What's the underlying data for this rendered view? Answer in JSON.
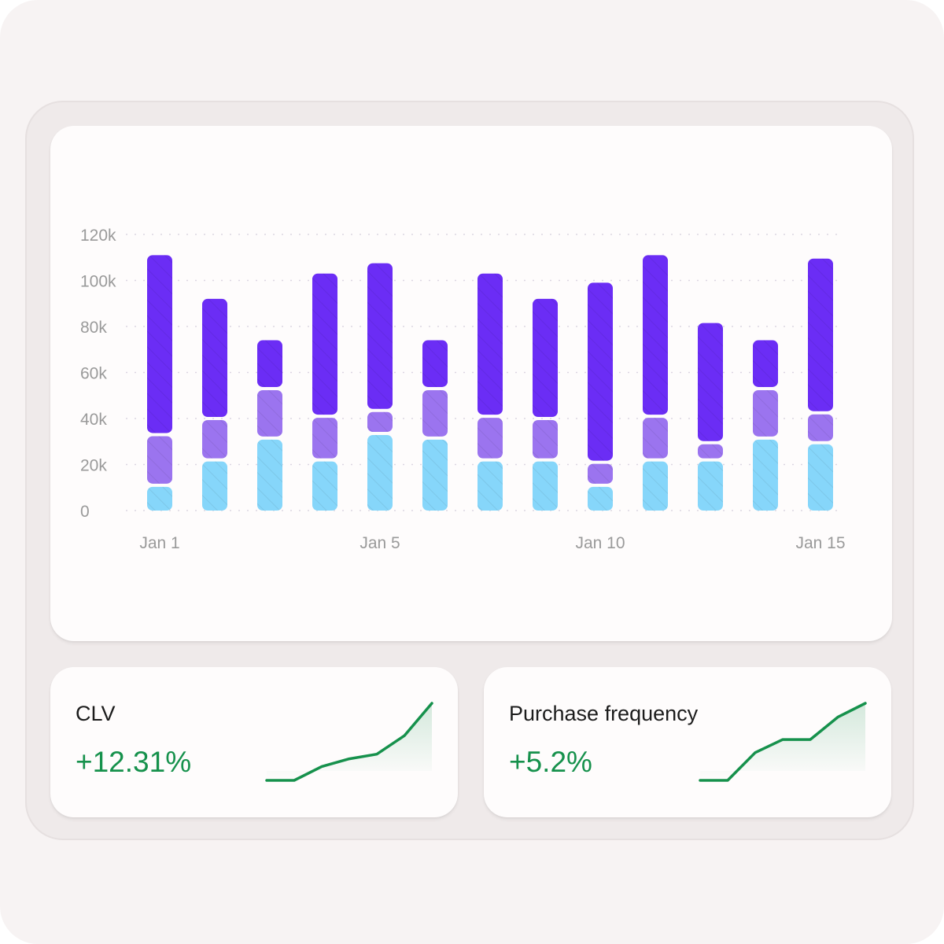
{
  "colors": {
    "top_segment": "#6b2df5",
    "middle_segment": "#9b74ef",
    "bottom_segment": "#86d6fa",
    "positive": "#16914c",
    "grid": "#dcd6e2",
    "tick_label": "#9a9a9a"
  },
  "chart_data": {
    "type": "bar",
    "stacked": true,
    "title": "",
    "xlabel": "",
    "ylabel": "",
    "ylim": [
      0,
      120000
    ],
    "y_ticks": [
      0,
      20000,
      40000,
      60000,
      80000,
      100000,
      120000
    ],
    "y_tick_labels": [
      "0",
      "20k",
      "40k",
      "60k",
      "80k",
      "100k",
      "120k"
    ],
    "x_tick_labels": [
      {
        "index": 0,
        "label": "Jan 1"
      },
      {
        "index": 4,
        "label": "Jan 5"
      },
      {
        "index": 8,
        "label": "Jan 10"
      },
      {
        "index": 12,
        "label": "Jan 15"
      }
    ],
    "categories": [
      "1",
      "2",
      "3",
      "4",
      "5",
      "6",
      "7",
      "8",
      "9",
      "10",
      "11",
      "12",
      "13"
    ],
    "grid": true,
    "series": [
      {
        "values": [
          11000,
          22000,
          31500,
          22000,
          33500,
          31500,
          22000,
          22000,
          11000,
          22000,
          22000,
          31500,
          29500
        ]
      },
      {
        "values": [
          22000,
          18000,
          21500,
          19000,
          10000,
          21500,
          19000,
          18000,
          10000,
          19000,
          7500,
          21500,
          13000
        ]
      },
      {
        "values": [
          78000,
          52000,
          21000,
          62000,
          64000,
          21000,
          62000,
          52000,
          78000,
          70000,
          52000,
          21000,
          67000
        ]
      }
    ]
  },
  "kpis": [
    {
      "title": "CLV",
      "value": "+12.31%",
      "trend": [
        0,
        0,
        18,
        28,
        34,
        58,
        100
      ]
    },
    {
      "title": "Purchase frequency",
      "value": "+5.2%",
      "trend": [
        0,
        0,
        36,
        53,
        53,
        82,
        100
      ]
    }
  ]
}
